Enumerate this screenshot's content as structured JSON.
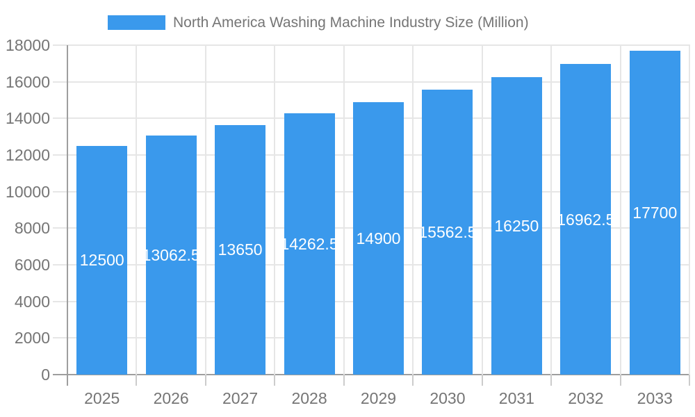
{
  "chart_data": {
    "type": "bar",
    "title": "North America Washing Machine Industry Size (Million)",
    "legend": {
      "position": "top",
      "label": "North America Washing Machine Industry Size (Million)"
    },
    "categories": [
      "2025",
      "2026",
      "2027",
      "2028",
      "2029",
      "2030",
      "2031",
      "2032",
      "2033"
    ],
    "values": [
      12500,
      13062.5,
      13650,
      14262.5,
      14900,
      15562.5,
      16250,
      16962.5,
      17700
    ],
    "value_labels": [
      "12500",
      "13062.5",
      "13650",
      "14262.5",
      "14900",
      "15562.5",
      "16250",
      "16962.5",
      "17700"
    ],
    "xlabel": "",
    "ylabel": "",
    "ylim": [
      0,
      18000
    ],
    "yticks": [
      0,
      2000,
      4000,
      6000,
      8000,
      10000,
      12000,
      14000,
      16000,
      18000
    ],
    "ytick_labels": [
      "0",
      "2000",
      "4000",
      "6000",
      "8000",
      "10000",
      "12000",
      "14000",
      "16000",
      "18000"
    ],
    "grid": true,
    "colors": {
      "bar": "#3a99ec",
      "value_label_text": "#ffffff",
      "axis_text": "#757575",
      "gridline": "#e6e6e6",
      "axis_line": "#9e9e9e",
      "tick": "#cccccc",
      "background": "#ffffff"
    }
  }
}
